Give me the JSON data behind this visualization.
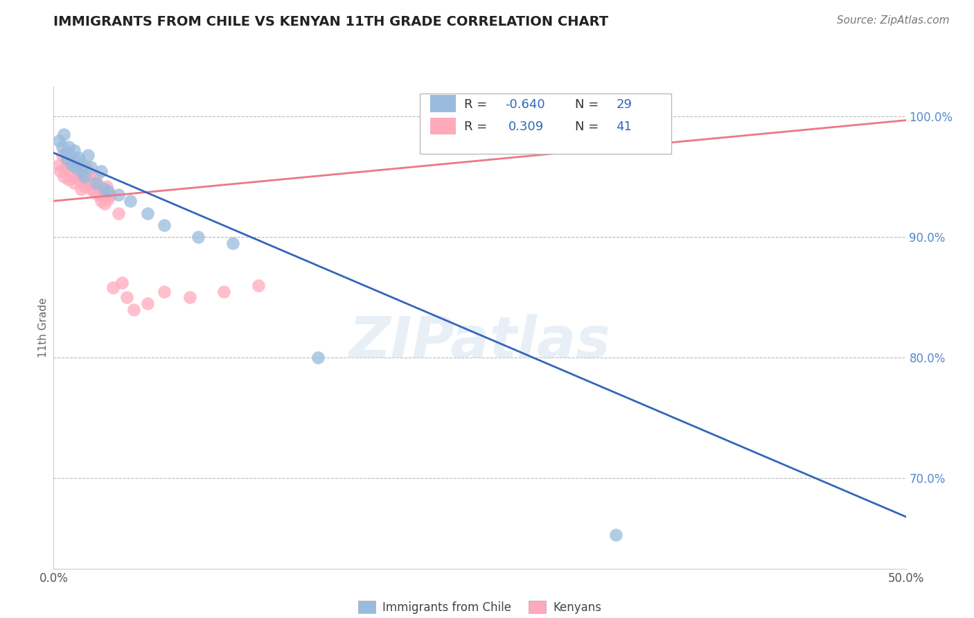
{
  "title": "IMMIGRANTS FROM CHILE VS KENYAN 11TH GRADE CORRELATION CHART",
  "source": "Source: ZipAtlas.com",
  "ylabel": "11th Grade",
  "xlim": [
    0.0,
    0.5
  ],
  "ylim": [
    0.625,
    1.025
  ],
  "xticks": [
    0.0,
    0.05,
    0.1,
    0.15,
    0.2,
    0.25,
    0.3,
    0.35,
    0.4,
    0.45,
    0.5
  ],
  "xticklabels": [
    "0.0%",
    "",
    "",
    "",
    "",
    "",
    "",
    "",
    "",
    "",
    "50.0%"
  ],
  "yticks_right": [
    0.7,
    0.8,
    0.9,
    1.0
  ],
  "ytick_labels_right": [
    "70.0%",
    "80.0%",
    "90.0%",
    "100.0%"
  ],
  "blue_R": -0.64,
  "blue_N": 29,
  "pink_R": 0.309,
  "pink_N": 41,
  "blue_color": "#99BBDD",
  "pink_color": "#FFAABB",
  "blue_line_color": "#3366BB",
  "pink_line_color": "#EE7788",
  "watermark": "ZIPatlas",
  "blue_line_x0": 0.0,
  "blue_line_y0": 0.97,
  "blue_line_x1": 0.5,
  "blue_line_y1": 0.668,
  "pink_line_x0": 0.0,
  "pink_line_y0": 0.93,
  "pink_line_x1": 0.5,
  "pink_line_y1": 0.997,
  "blue_scatter_x": [
    0.003,
    0.005,
    0.006,
    0.007,
    0.008,
    0.009,
    0.01,
    0.011,
    0.012,
    0.013,
    0.014,
    0.015,
    0.016,
    0.017,
    0.018,
    0.02,
    0.022,
    0.025,
    0.028,
    0.03,
    0.032,
    0.038,
    0.045,
    0.055,
    0.065,
    0.085,
    0.105,
    0.155,
    0.33
  ],
  "blue_scatter_y": [
    0.98,
    0.975,
    0.985,
    0.97,
    0.965,
    0.975,
    0.968,
    0.96,
    0.972,
    0.958,
    0.963,
    0.966,
    0.955,
    0.96,
    0.95,
    0.968,
    0.958,
    0.945,
    0.955,
    0.94,
    0.938,
    0.935,
    0.93,
    0.92,
    0.91,
    0.9,
    0.895,
    0.8,
    0.653
  ],
  "pink_scatter_x": [
    0.003,
    0.004,
    0.005,
    0.006,
    0.007,
    0.008,
    0.009,
    0.01,
    0.011,
    0.012,
    0.013,
    0.014,
    0.015,
    0.016,
    0.017,
    0.018,
    0.019,
    0.02,
    0.021,
    0.022,
    0.023,
    0.024,
    0.025,
    0.026,
    0.027,
    0.028,
    0.029,
    0.03,
    0.031,
    0.032,
    0.033,
    0.035,
    0.038,
    0.04,
    0.043,
    0.047,
    0.055,
    0.065,
    0.08,
    0.1,
    0.12
  ],
  "pink_scatter_y": [
    0.96,
    0.955,
    0.968,
    0.95,
    0.958,
    0.962,
    0.948,
    0.955,
    0.96,
    0.945,
    0.95,
    0.955,
    0.948,
    0.94,
    0.952,
    0.942,
    0.958,
    0.945,
    0.95,
    0.94,
    0.945,
    0.938,
    0.95,
    0.935,
    0.942,
    0.93,
    0.938,
    0.928,
    0.942,
    0.932,
    0.935,
    0.858,
    0.92,
    0.862,
    0.85,
    0.84,
    0.845,
    0.855,
    0.85,
    0.855,
    0.86
  ]
}
